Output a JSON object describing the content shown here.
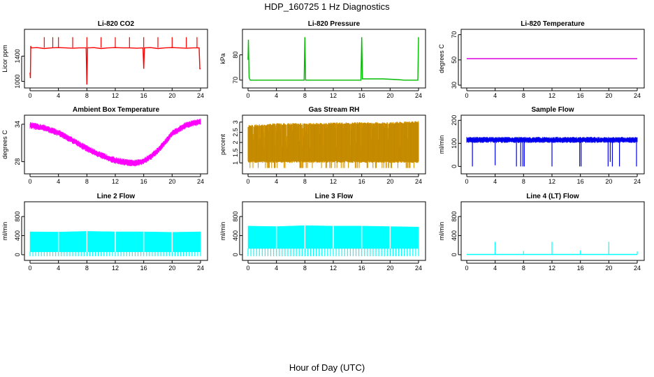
{
  "title": "HDP_160725  1 Hz Diagnostics",
  "xlabel": "Hour of Day (UTC)",
  "chart_data": [
    {
      "type": "line",
      "title": "Li-820 CO2",
      "ylabel": "Licor ppm",
      "color": "#ff0000",
      "xlim": [
        0,
        24
      ],
      "xticks": [
        0,
        4,
        8,
        12,
        16,
        20,
        24
      ],
      "ylim": [
        940,
        1780
      ],
      "yticks": [
        1000,
        1400
      ],
      "series": [
        {
          "x": [
            0,
            0.05,
            0.1,
            0.15,
            0.3,
            1,
            2,
            3,
            4,
            5,
            6,
            7,
            7.9,
            8,
            8.1,
            9,
            10,
            11,
            12,
            13,
            14,
            15,
            15.9,
            16,
            16.1,
            17,
            18,
            19,
            20,
            21,
            22,
            23,
            23.8,
            23.9,
            24
          ],
          "y": [
            1140,
            1050,
            1560,
            1530,
            1530,
            1535,
            1520,
            1530,
            1535,
            1530,
            1525,
            1530,
            1530,
            950,
            1530,
            1535,
            1520,
            1530,
            1535,
            1530,
            1530,
            1525,
            1530,
            1200,
            1530,
            1535,
            1520,
            1530,
            1535,
            1530,
            1525,
            1530,
            1530,
            1200,
            1200
          ]
        }
      ],
      "spikes": [
        {
          "x": 2,
          "y": 1700
        },
        {
          "x": 3.2,
          "y": 1700
        },
        {
          "x": 4,
          "y": 1700
        },
        {
          "x": 6,
          "y": 1700
        },
        {
          "x": 8,
          "y": 1700
        },
        {
          "x": 10,
          "y": 1700
        },
        {
          "x": 12,
          "y": 1700
        },
        {
          "x": 14,
          "y": 1700
        },
        {
          "x": 16,
          "y": 1700
        },
        {
          "x": 18,
          "y": 1700
        },
        {
          "x": 20,
          "y": 1700
        },
        {
          "x": 22,
          "y": 1700
        },
        {
          "x": 23.5,
          "y": 1700
        }
      ]
    },
    {
      "type": "line",
      "title": "Li-820 Pressure",
      "ylabel": "kPa",
      "color": "#00bb00",
      "xlim": [
        0,
        24
      ],
      "xticks": [
        0,
        4,
        8,
        12,
        16,
        20,
        24
      ],
      "ylim": [
        68,
        89
      ],
      "yticks": [
        70,
        80
      ],
      "series": [
        {
          "x": [
            0,
            0.05,
            0.1,
            0.15,
            0.3,
            2,
            4,
            6,
            7.9,
            8,
            8.1,
            10,
            12,
            14,
            15.9,
            16,
            16.1,
            17,
            19,
            21,
            22,
            23.9,
            24
          ],
          "y": [
            78,
            86,
            79,
            71,
            70,
            70,
            70,
            70,
            70,
            87,
            70,
            70,
            70,
            70,
            70,
            87,
            70.5,
            70.5,
            70.5,
            70.2,
            70,
            70,
            87
          ]
        }
      ]
    },
    {
      "type": "line",
      "title": "Li-820 Temperature",
      "ylabel": "degrees C",
      "color": "#dd00dd",
      "xlim": [
        0,
        24
      ],
      "xticks": [
        0,
        4,
        8,
        12,
        16,
        20,
        24
      ],
      "ylim": [
        30,
        72
      ],
      "yticks": [
        30,
        50,
        70
      ],
      "series": [
        {
          "x": [
            0,
            24
          ],
          "y": [
            51,
            51
          ]
        }
      ]
    },
    {
      "type": "line",
      "title": "Ambient Box Temperature",
      "ylabel": "degrees C",
      "color": "#ff00ff",
      "xlim": [
        0,
        24
      ],
      "xticks": [
        0,
        4,
        8,
        12,
        16,
        20,
        24
      ],
      "ylim": [
        26.5,
        35
      ],
      "yticks": [
        28,
        34
      ],
      "band": 0.5,
      "series": [
        {
          "x": [
            0,
            2,
            4,
            6,
            8,
            10,
            12,
            14,
            15,
            16,
            17,
            18,
            19,
            20,
            22,
            24
          ],
          "y": [
            33.8,
            33.4,
            32.6,
            31.4,
            30.1,
            29.0,
            28.2,
            27.8,
            27.8,
            28.1,
            28.8,
            29.8,
            31.1,
            32.5,
            33.9,
            34.4
          ]
        }
      ]
    },
    {
      "type": "line",
      "title": "Gas Stream RH",
      "ylabel": "percent",
      "color": "#e6a000",
      "xlim": [
        0,
        24
      ],
      "xticks": [
        0,
        4,
        8,
        12,
        16,
        20,
        24
      ],
      "ylim": [
        0.6,
        3.2
      ],
      "yticks": [
        1.0,
        1.5,
        2.0,
        2.5,
        3.0
      ],
      "band_low": 1.0,
      "series": [
        {
          "x": [
            0,
            4,
            8,
            12,
            16,
            20,
            24
          ],
          "y": [
            2.85,
            2.95,
            2.95,
            2.98,
            3.0,
            3.0,
            3.05
          ]
        }
      ]
    },
    {
      "type": "line",
      "title": "Sample Flow",
      "ylabel": "ml/min",
      "color": "#0000ee",
      "xlim": [
        0,
        24
      ],
      "xticks": [
        0,
        4,
        8,
        12,
        16,
        20,
        24
      ],
      "ylim": [
        -20,
        210
      ],
      "yticks": [
        0,
        100,
        200
      ],
      "band": 12,
      "series": [
        {
          "x": [
            0,
            24
          ],
          "y": [
            115,
            115
          ]
        }
      ],
      "dips": [
        {
          "x": 0.8,
          "y": 0
        },
        {
          "x": 4,
          "y": 5
        },
        {
          "x": 7,
          "y": 0
        },
        {
          "x": 7.6,
          "y": 0
        },
        {
          "x": 7.9,
          "y": 0
        },
        {
          "x": 8.1,
          "y": 0
        },
        {
          "x": 12,
          "y": 0
        },
        {
          "x": 15.9,
          "y": 0
        },
        {
          "x": 16.1,
          "y": 0
        },
        {
          "x": 19.9,
          "y": 0
        },
        {
          "x": 20.2,
          "y": 20
        },
        {
          "x": 20.5,
          "y": 0
        },
        {
          "x": 21.5,
          "y": 0
        },
        {
          "x": 23.9,
          "y": 0
        }
      ]
    },
    {
      "type": "area",
      "title": "Line 2 Flow",
      "ylabel": "ml/min",
      "color": "#00ffff",
      "xlim": [
        0,
        24
      ],
      "xticks": [
        0,
        4,
        8,
        12,
        16,
        20,
        24
      ],
      "ylim": [
        -60,
        1050
      ],
      "yticks": [
        0,
        400,
        800
      ],
      "series": [
        {
          "x": [
            0,
            4,
            8,
            12,
            16,
            20,
            24
          ],
          "top": [
            480,
            475,
            490,
            480,
            480,
            470,
            480
          ],
          "bottom": [
            60,
            60,
            60,
            60,
            60,
            60,
            60
          ]
        }
      ]
    },
    {
      "type": "area",
      "title": "Line 3 Flow",
      "ylabel": "ml/min",
      "color": "#00ffff",
      "xlim": [
        0,
        24
      ],
      "xticks": [
        0,
        4,
        8,
        12,
        16,
        20,
        24
      ],
      "ylim": [
        -60,
        1050
      ],
      "yticks": [
        0,
        400,
        800
      ],
      "series": [
        {
          "x": [
            0,
            4,
            8,
            12,
            16,
            20,
            24
          ],
          "top": [
            600,
            590,
            610,
            600,
            600,
            590,
            580
          ],
          "bottom": [
            130,
            130,
            130,
            130,
            130,
            130,
            130
          ]
        }
      ]
    },
    {
      "type": "line",
      "title": "Line 4 (LT) Flow",
      "ylabel": "ml/min",
      "color": "#00ffff",
      "xlim": [
        0,
        24
      ],
      "xticks": [
        0,
        4,
        8,
        12,
        16,
        20,
        24
      ],
      "ylim": [
        -60,
        1050
      ],
      "yticks": [
        0,
        400,
        800
      ],
      "series": [
        {
          "x": [
            0,
            24
          ],
          "y": [
            5,
            5
          ]
        }
      ],
      "spikes": [
        {
          "x": 4,
          "y": 270
        },
        {
          "x": 8,
          "y": 80
        },
        {
          "x": 12,
          "y": 270
        },
        {
          "x": 16,
          "y": 90
        },
        {
          "x": 20,
          "y": 270
        },
        {
          "x": 24,
          "y": 70
        }
      ]
    }
  ]
}
